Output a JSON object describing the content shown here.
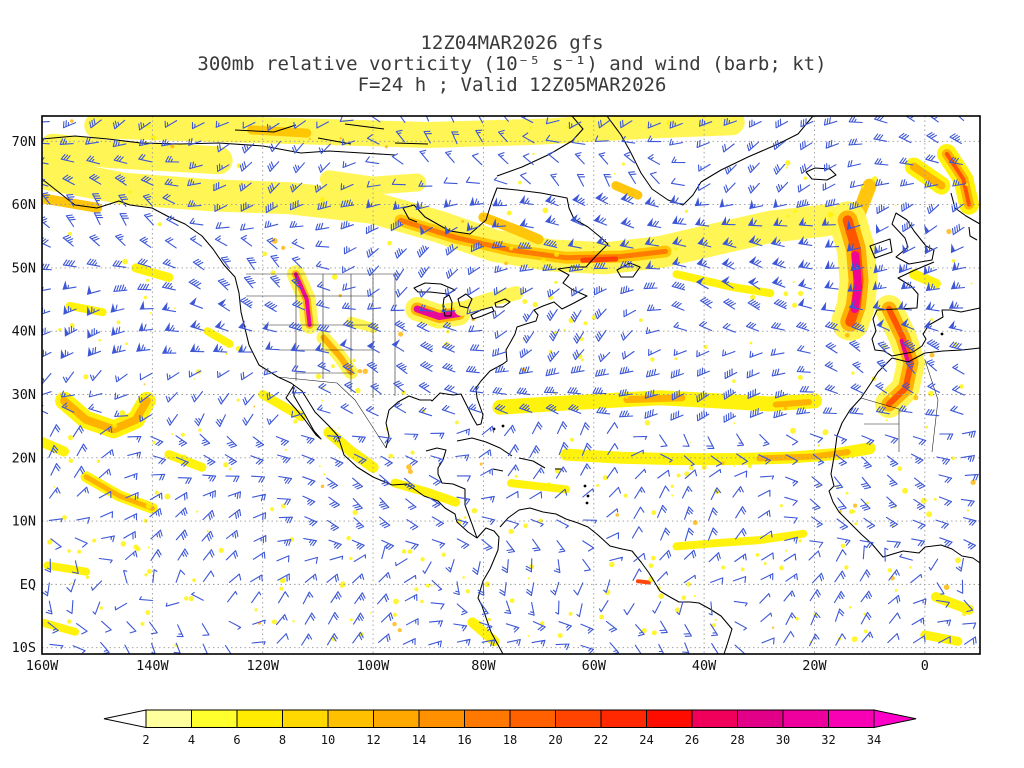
{
  "header": {
    "line1": "12Z04MAR2026 gfs",
    "line2": "300mb relative vorticity (10⁻⁵ s⁻¹) and wind (barb; kt)",
    "line3": "F=24 h ; Valid 12Z05MAR2026"
  },
  "chart_data": {
    "type": "heatmap",
    "model": "gfs",
    "init_time": "12Z04MAR2026",
    "forecast_hour": "F=24 h",
    "valid_time": "12Z05MAR2026",
    "field": "300mb relative vorticity",
    "field_units": "10⁻⁵ s⁻¹",
    "wind_units": "kt",
    "x_axis": {
      "tick_labels": [
        "160W",
        "140W",
        "120W",
        "100W",
        "80W",
        "60W",
        "40W",
        "20W",
        "0"
      ],
      "tick_lons": [
        -160,
        -140,
        -120,
        -100,
        -80,
        -60,
        -40,
        -20,
        0
      ],
      "lon_range": [
        -160,
        10
      ]
    },
    "y_axis": {
      "tick_labels": [
        "70N",
        "60N",
        "50N",
        "40N",
        "30N",
        "20N",
        "10N",
        "EQ",
        "10S"
      ],
      "tick_lats": [
        70,
        60,
        50,
        40,
        30,
        20,
        10,
        0,
        -10
      ],
      "lat_range": [
        -11,
        74
      ]
    },
    "grid": {
      "color": "#9a9a9a",
      "style": "dotted"
    },
    "colors": {
      "coastline": "#000000",
      "background": "#FFFFFF",
      "title": "#3a3a3a"
    },
    "colorbar": {
      "levels": [
        2,
        4,
        6,
        8,
        10,
        12,
        14,
        16,
        18,
        20,
        22,
        24,
        26,
        28,
        30,
        32,
        34
      ],
      "colors": [
        "#FFFF9E",
        "#FFFF2E",
        "#FFEC00",
        "#FFD800",
        "#FFC000",
        "#FFA800",
        "#FF9000",
        "#FF7800",
        "#FF6000",
        "#FF4400",
        "#FF2800",
        "#FF0C00",
        "#F0005A",
        "#E10087",
        "#EE009E",
        "#F800B4"
      ],
      "under_color": "#FFFFFF",
      "over_color": "#FF00C8",
      "outline": "#000000"
    },
    "wind_field": {
      "barb_color": "#3D57D6",
      "grid_deg_lon": 4.6,
      "grid_deg_lat": 3.3,
      "seed": 13,
      "speckle_seed": 99
    },
    "vorticity_features": [
      {
        "pts": [
          [
            -150,
            72.5
          ],
          [
            -130,
            72
          ],
          [
            -110,
            71.5
          ],
          [
            -90,
            71
          ],
          [
            -70,
            71.5
          ],
          [
            -50,
            72.5
          ],
          [
            -35,
            73
          ]
        ],
        "layers": [
          [
            "#FFF64D",
            26
          ]
        ]
      },
      {
        "pts": [
          [
            -122,
            71.8
          ],
          [
            -112,
            71.3
          ]
        ],
        "layers": [
          [
            "#FFC300",
            9
          ]
        ]
      },
      {
        "pts": [
          [
            -158,
            69
          ],
          [
            -148,
            68
          ],
          [
            -138,
            67.5
          ],
          [
            -128,
            67
          ]
        ],
        "layers": [
          [
            "#FFF64D",
            28
          ]
        ]
      },
      {
        "pts": [
          [
            -160,
            65
          ],
          [
            -145,
            62.5
          ],
          [
            -130,
            61.5
          ],
          [
            -115,
            61
          ],
          [
            -100,
            59.5
          ],
          [
            -88,
            56.5
          ],
          [
            -78,
            53.5
          ],
          [
            -68,
            52
          ],
          [
            -58,
            51.5
          ],
          [
            -48,
            52.5
          ],
          [
            -38,
            54.5
          ],
          [
            -28,
            56.5
          ],
          [
            -18,
            57.5
          ]
        ],
        "layers": [
          [
            "#FFF64D",
            32
          ]
        ]
      },
      {
        "pts": [
          [
            -95,
            57.5
          ],
          [
            -85,
            54.8
          ],
          [
            -75,
            52.8
          ],
          [
            -65,
            51.6
          ],
          [
            -55,
            51.8
          ],
          [
            -47,
            52.6
          ]
        ],
        "layers": [
          [
            "#FFC300",
            12
          ],
          [
            "#FF7800",
            5
          ]
        ]
      },
      {
        "pts": [
          [
            -62,
            51.2
          ],
          [
            -56,
            51.4
          ]
        ],
        "layers": [
          [
            "#FF3C00",
            5
          ]
        ]
      },
      {
        "pts": [
          [
            -160,
            61
          ],
          [
            -150,
            59.5
          ]
        ],
        "layers": [
          [
            "#FFC300",
            10
          ]
        ]
      },
      {
        "pts": [
          [
            -108,
            64
          ],
          [
            -100,
            63
          ],
          [
            -92,
            63.5
          ]
        ],
        "layers": [
          [
            "#FFF64D",
            18
          ]
        ]
      },
      {
        "pts": [
          [
            -56,
            63
          ],
          [
            -52,
            61.5
          ]
        ],
        "layers": [
          [
            "#FFC300",
            9
          ]
        ]
      },
      {
        "pts": [
          [
            -10,
            63
          ],
          [
            -12,
            58.5
          ]
        ],
        "layers": [
          [
            "#FFC300",
            14
          ]
        ]
      },
      {
        "pts": [
          [
            -14,
            57.5
          ],
          [
            -12.5,
            53
          ],
          [
            -12,
            48
          ],
          [
            -12.5,
            44
          ],
          [
            -13.5,
            41.5
          ]
        ],
        "layers": [
          [
            "#FFF64D",
            38
          ],
          [
            "#FFAE00",
            20
          ],
          [
            "#FF5000",
            10
          ]
        ]
      },
      {
        "pts": [
          [
            -12.6,
            52
          ],
          [
            -12.1,
            47
          ],
          [
            -12.7,
            43.5
          ]
        ],
        "layers": [
          [
            "#F0009B",
            8
          ]
        ]
      },
      {
        "pts": [
          [
            -6.5,
            43.5
          ],
          [
            -4,
            39
          ],
          [
            -2.5,
            35
          ],
          [
            -3.5,
            31
          ],
          [
            -6.5,
            28.5
          ]
        ],
        "layers": [
          [
            "#FFF64D",
            28
          ],
          [
            "#FFAE00",
            15
          ],
          [
            "#FF5000",
            6
          ]
        ]
      },
      {
        "pts": [
          [
            -4.2,
            38.5
          ],
          [
            -3.2,
            35.5
          ]
        ],
        "layers": [
          [
            "#E600A0",
            4
          ]
        ]
      },
      {
        "pts": [
          [
            -92,
            43.5
          ],
          [
            -88,
            42.3
          ],
          [
            -84.5,
            42.8
          ]
        ],
        "layers": [
          [
            "#FFF64D",
            24
          ],
          [
            "#FFAE00",
            13
          ],
          [
            "#E600A0",
            7
          ]
        ]
      },
      {
        "pts": [
          [
            -84,
            43.5
          ],
          [
            -79,
            45
          ],
          [
            -74,
            46
          ]
        ],
        "layers": [
          [
            "#FFF64D",
            14
          ]
        ]
      },
      {
        "pts": [
          [
            -114,
            49
          ],
          [
            -112,
            45
          ],
          [
            -111.5,
            41
          ]
        ],
        "layers": [
          [
            "#FFF64D",
            18
          ],
          [
            "#FFAE00",
            8
          ],
          [
            "#EE00A0",
            4
          ]
        ]
      },
      {
        "pts": [
          [
            -109,
            39
          ],
          [
            -106,
            36
          ],
          [
            -104,
            33.5
          ]
        ],
        "layers": [
          [
            "#FFF64D",
            14
          ],
          [
            "#FFAE00",
            6
          ]
        ]
      },
      {
        "pts": [
          [
            -104,
            41.5
          ],
          [
            -100,
            40.5
          ]
        ],
        "layers": [
          [
            "#FFF64D",
            10
          ]
        ]
      },
      {
        "pts": [
          [
            -77,
            28
          ],
          [
            -68,
            28.5
          ],
          [
            -58,
            29
          ],
          [
            -48,
            29.5
          ],
          [
            -38,
            29
          ],
          [
            -28,
            28.5
          ],
          [
            -20,
            29
          ]
        ],
        "layers": [
          [
            "#FFF200",
            15
          ]
        ]
      },
      {
        "pts": [
          [
            -54,
            29.2
          ],
          [
            -44,
            29.5
          ]
        ],
        "layers": [
          [
            "#FFAE00",
            7
          ]
        ]
      },
      {
        "pts": [
          [
            -27,
            28.4
          ],
          [
            -21,
            28.8
          ]
        ],
        "layers": [
          [
            "#FFAE00",
            6
          ]
        ]
      },
      {
        "pts": [
          [
            -65,
            20.5
          ],
          [
            -55,
            20
          ],
          [
            -45,
            19.8
          ],
          [
            -35,
            19.8
          ],
          [
            -25,
            20
          ],
          [
            -16,
            20.6
          ],
          [
            -10,
            21.5
          ]
        ],
        "layers": [
          [
            "#FFF200",
            12
          ]
        ]
      },
      {
        "pts": [
          [
            -30,
            19.9
          ],
          [
            -20,
            20.2
          ],
          [
            -14,
            20.9
          ]
        ],
        "layers": [
          [
            "#FFAE00",
            6
          ]
        ]
      },
      {
        "pts": [
          [
            -156,
            29
          ],
          [
            -152,
            26
          ],
          [
            -147,
            24.5
          ],
          [
            -143,
            26
          ],
          [
            -141,
            29
          ]
        ],
        "layers": [
          [
            "#FFF200",
            18
          ],
          [
            "#FFAE00",
            8
          ]
        ]
      },
      {
        "pts": [
          [
            -160,
            22.5
          ],
          [
            -156,
            21
          ]
        ],
        "layers": [
          [
            "#FFF200",
            10
          ]
        ]
      },
      {
        "pts": [
          [
            -152,
            17
          ],
          [
            -146,
            14
          ],
          [
            -140,
            12
          ]
        ],
        "layers": [
          [
            "#FFF200",
            11
          ],
          [
            "#FFAE00",
            5
          ]
        ]
      },
      {
        "pts": [
          [
            -137,
            20.5
          ],
          [
            -131,
            18.5
          ]
        ],
        "layers": [
          [
            "#FFF200",
            9
          ]
        ]
      },
      {
        "pts": [
          [
            -159,
            3
          ],
          [
            -152,
            2
          ]
        ],
        "layers": [
          [
            "#FFF200",
            8
          ]
        ]
      },
      {
        "pts": [
          [
            -160,
            -6
          ],
          [
            -154,
            -7.5
          ]
        ],
        "layers": [
          [
            "#FFF200",
            8
          ]
        ]
      },
      {
        "pts": [
          [
            -108,
            24
          ],
          [
            -104,
            21
          ],
          [
            -100,
            18.5
          ]
        ],
        "layers": [
          [
            "#FFF200",
            11
          ]
        ]
      },
      {
        "pts": [
          [
            -96,
            16
          ],
          [
            -90,
            14.5
          ],
          [
            -85,
            13
          ]
        ],
        "layers": [
          [
            "#FFF200",
            9
          ]
        ]
      },
      {
        "pts": [
          [
            -75,
            16
          ],
          [
            -70,
            15.5
          ],
          [
            -65,
            15
          ]
        ],
        "layers": [
          [
            "#FFF200",
            8
          ]
        ]
      },
      {
        "pts": [
          [
            -45,
            6
          ],
          [
            -38,
            6.5
          ],
          [
            -30,
            7
          ],
          [
            -22,
            8
          ]
        ],
        "layers": [
          [
            "#FFF200",
            8
          ]
        ]
      },
      {
        "pts": [
          [
            -52,
            0.5
          ],
          [
            -50,
            0.3
          ]
        ],
        "layers": [
          [
            "#FF3C00",
            4
          ]
        ]
      },
      {
        "pts": [
          [
            2,
            -2
          ],
          [
            8,
            -4
          ]
        ],
        "layers": [
          [
            "#FFF200",
            10
          ]
        ]
      },
      {
        "pts": [
          [
            0,
            -8
          ],
          [
            6,
            -9
          ]
        ],
        "layers": [
          [
            "#FFF200",
            9
          ]
        ]
      },
      {
        "pts": [
          [
            -2,
            66
          ],
          [
            3,
            63
          ]
        ],
        "layers": [
          [
            "#FFF200",
            18
          ],
          [
            "#FFAE00",
            8
          ]
        ]
      },
      {
        "pts": [
          [
            4,
            68
          ],
          [
            7,
            64
          ],
          [
            8,
            60
          ]
        ],
        "layers": [
          [
            "#FFF200",
            20
          ],
          [
            "#FFAE00",
            10
          ],
          [
            "#FF5000",
            4
          ]
        ]
      },
      {
        "pts": [
          [
            -45,
            49
          ],
          [
            -35,
            47
          ],
          [
            -28,
            46
          ]
        ],
        "layers": [
          [
            "#FFF200",
            8
          ]
        ]
      },
      {
        "pts": [
          [
            -80,
            58
          ],
          [
            -74,
            56
          ],
          [
            -70,
            54.5
          ]
        ],
        "layers": [
          [
            "#FFC300",
            10
          ]
        ]
      },
      {
        "pts": [
          [
            -82,
            -6
          ],
          [
            -78,
            -9
          ]
        ],
        "layers": [
          [
            "#FFF200",
            10
          ]
        ]
      },
      {
        "pts": [
          [
            -120,
            30
          ],
          [
            -116,
            28
          ],
          [
            -113,
            26.5
          ]
        ],
        "layers": [
          [
            "#FFF200",
            9
          ]
        ]
      },
      {
        "pts": [
          [
            -130,
            40
          ],
          [
            -126,
            38
          ]
        ],
        "layers": [
          [
            "#FFF200",
            8
          ]
        ]
      },
      {
        "pts": [
          [
            -143,
            50
          ],
          [
            -137,
            48.5
          ]
        ],
        "layers": [
          [
            "#FFF200",
            9
          ]
        ]
      },
      {
        "pts": [
          [
            -155,
            44
          ],
          [
            -149,
            43
          ]
        ],
        "layers": [
          [
            "#FFF200",
            8
          ]
        ]
      },
      {
        "pts": [
          [
            -2,
            49
          ],
          [
            2,
            47.5
          ]
        ],
        "layers": [
          [
            "#FFF200",
            10
          ]
        ]
      }
    ]
  }
}
